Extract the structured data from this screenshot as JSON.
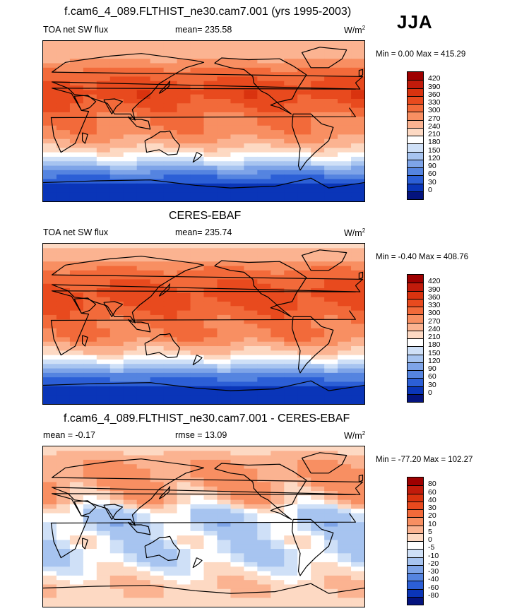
{
  "season": "JJA",
  "chart_data": [
    {
      "type": "heatmap",
      "panel": "model",
      "title": "f.cam6_4_089.FLTHIST_ne30.cam7.001 (yrs 1995-2003)",
      "left_label": "TOA net SW flux",
      "center_label": "mean= 235.58",
      "units": "W/m",
      "units_exp": "2",
      "minmax_text": "Min =  0.00 Max = 415.29",
      "mean": 235.58,
      "min": 0.0,
      "max": 415.29,
      "levels": [
        "420",
        "390",
        "360",
        "330",
        "300",
        "270",
        "240",
        "210",
        "180",
        "150",
        "120",
        "90",
        "60",
        "30",
        "0"
      ],
      "colors": [
        "#9e0000",
        "#c11b0b",
        "#d9330f",
        "#e84a1e",
        "#f26a3a",
        "#f88f62",
        "#fbb391",
        "#fdd9c3",
        "#ffffff",
        "#cfe0f7",
        "#a7c4f0",
        "#7ea4e8",
        "#5584e0",
        "#2c5fd6",
        "#0a35b8",
        "#04137e"
      ],
      "lat_profile": [
        {
          "lat": 90,
          "v": 240
        },
        {
          "lat": 75,
          "v": 250
        },
        {
          "lat": 60,
          "v": 300
        },
        {
          "lat": 45,
          "v": 335
        },
        {
          "lat": 30,
          "v": 350
        },
        {
          "lat": 15,
          "v": 320
        },
        {
          "lat": 0,
          "v": 300
        },
        {
          "lat": -15,
          "v": 290
        },
        {
          "lat": -30,
          "v": 240
        },
        {
          "lat": -45,
          "v": 160
        },
        {
          "lat": -60,
          "v": 70
        },
        {
          "lat": -75,
          "v": 15
        },
        {
          "lat": -90,
          "v": 5
        }
      ],
      "lat_range": [
        -90,
        90
      ],
      "lon_range": [
        0,
        360
      ]
    },
    {
      "type": "heatmap",
      "panel": "obs",
      "title": "CERES-EBAF",
      "left_label": "TOA net SW flux",
      "center_label": "mean= 235.74",
      "units": "W/m",
      "units_exp": "2",
      "minmax_text": "Min =  -0.40 Max = 408.76",
      "mean": 235.74,
      "min": -0.4,
      "max": 408.76,
      "levels": [
        "420",
        "390",
        "360",
        "330",
        "300",
        "270",
        "240",
        "210",
        "180",
        "150",
        "120",
        "90",
        "60",
        "30",
        "0"
      ],
      "colors": [
        "#9e0000",
        "#c11b0b",
        "#d9330f",
        "#e84a1e",
        "#f26a3a",
        "#f88f62",
        "#fbb391",
        "#fdd9c3",
        "#ffffff",
        "#cfe0f7",
        "#a7c4f0",
        "#7ea4e8",
        "#5584e0",
        "#2c5fd6",
        "#0a35b8",
        "#04137e"
      ],
      "lat_profile": [
        {
          "lat": 90,
          "v": 235
        },
        {
          "lat": 75,
          "v": 255
        },
        {
          "lat": 60,
          "v": 305
        },
        {
          "lat": 45,
          "v": 330
        },
        {
          "lat": 30,
          "v": 345
        },
        {
          "lat": 15,
          "v": 325
        },
        {
          "lat": 0,
          "v": 305
        },
        {
          "lat": -15,
          "v": 295
        },
        {
          "lat": -30,
          "v": 245
        },
        {
          "lat": -45,
          "v": 155
        },
        {
          "lat": -60,
          "v": 65
        },
        {
          "lat": -75,
          "v": 12
        },
        {
          "lat": -90,
          "v": 3
        }
      ],
      "lat_range": [
        -90,
        90
      ],
      "lon_range": [
        0,
        360
      ]
    },
    {
      "type": "heatmap",
      "panel": "diff",
      "title": "f.cam6_4_089.FLTHIST_ne30.cam7.001 - CERES-EBAF",
      "left_label": "mean =  -0.17",
      "center_label": "rmse =  13.09",
      "units": "W/m",
      "units_exp": "2",
      "minmax_text": "Min = -77.20 Max = 102.27",
      "mean": -0.17,
      "rmse": 13.09,
      "min": -77.2,
      "max": 102.27,
      "levels": [
        "80",
        "60",
        "40",
        "30",
        "20",
        "10",
        "5",
        "0",
        "-5",
        "-10",
        "-20",
        "-30",
        "-40",
        "-60",
        "-80"
      ],
      "colors": [
        "#9e0000",
        "#c11b0b",
        "#d9330f",
        "#e84a1e",
        "#f26a3a",
        "#f88f62",
        "#fbb391",
        "#fdd9c3",
        "#ffffff",
        "#cfe0f7",
        "#a7c4f0",
        "#7ea4e8",
        "#5584e0",
        "#2c5fd6",
        "#0a35b8",
        "#04137e"
      ],
      "lat_profile": [
        {
          "lat": 90,
          "v": 3
        },
        {
          "lat": 75,
          "v": 8
        },
        {
          "lat": 60,
          "v": 12
        },
        {
          "lat": 45,
          "v": 10
        },
        {
          "lat": 30,
          "v": 6
        },
        {
          "lat": 15,
          "v": -8
        },
        {
          "lat": 0,
          "v": -12
        },
        {
          "lat": -15,
          "v": -6
        },
        {
          "lat": -30,
          "v": -10
        },
        {
          "lat": -45,
          "v": -4
        },
        {
          "lat": -60,
          "v": 3
        },
        {
          "lat": -75,
          "v": 5
        },
        {
          "lat": -90,
          "v": 2
        }
      ],
      "lat_range": [
        -90,
        90
      ],
      "lon_range": [
        0,
        360
      ]
    }
  ]
}
